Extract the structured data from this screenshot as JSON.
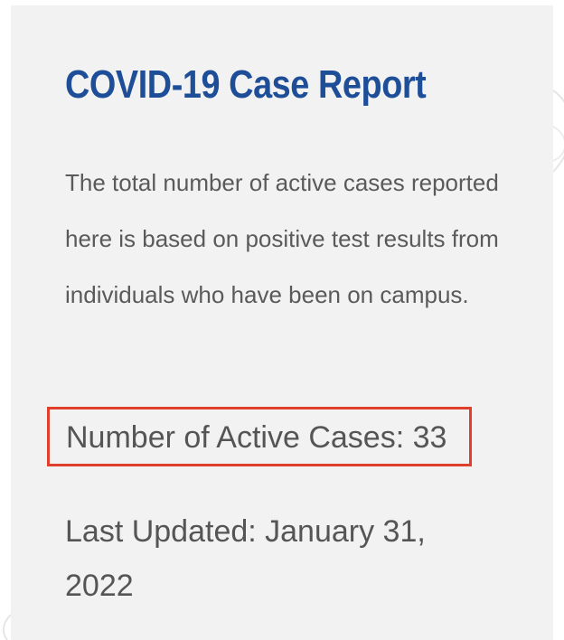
{
  "card": {
    "title": "COVID-19 Case Report",
    "description": "The total number of active cases reported here is based on positive test results from individuals who have been on campus.",
    "active_cases_text": "Number of Active Cases: 33",
    "last_updated_text": "Last Updated: January 31, 2022"
  },
  "colors": {
    "title": "#1f4e98",
    "highlight_border": "#e0402b",
    "card_background": "#f2f2f2",
    "body_text": "#5a5a5a"
  }
}
